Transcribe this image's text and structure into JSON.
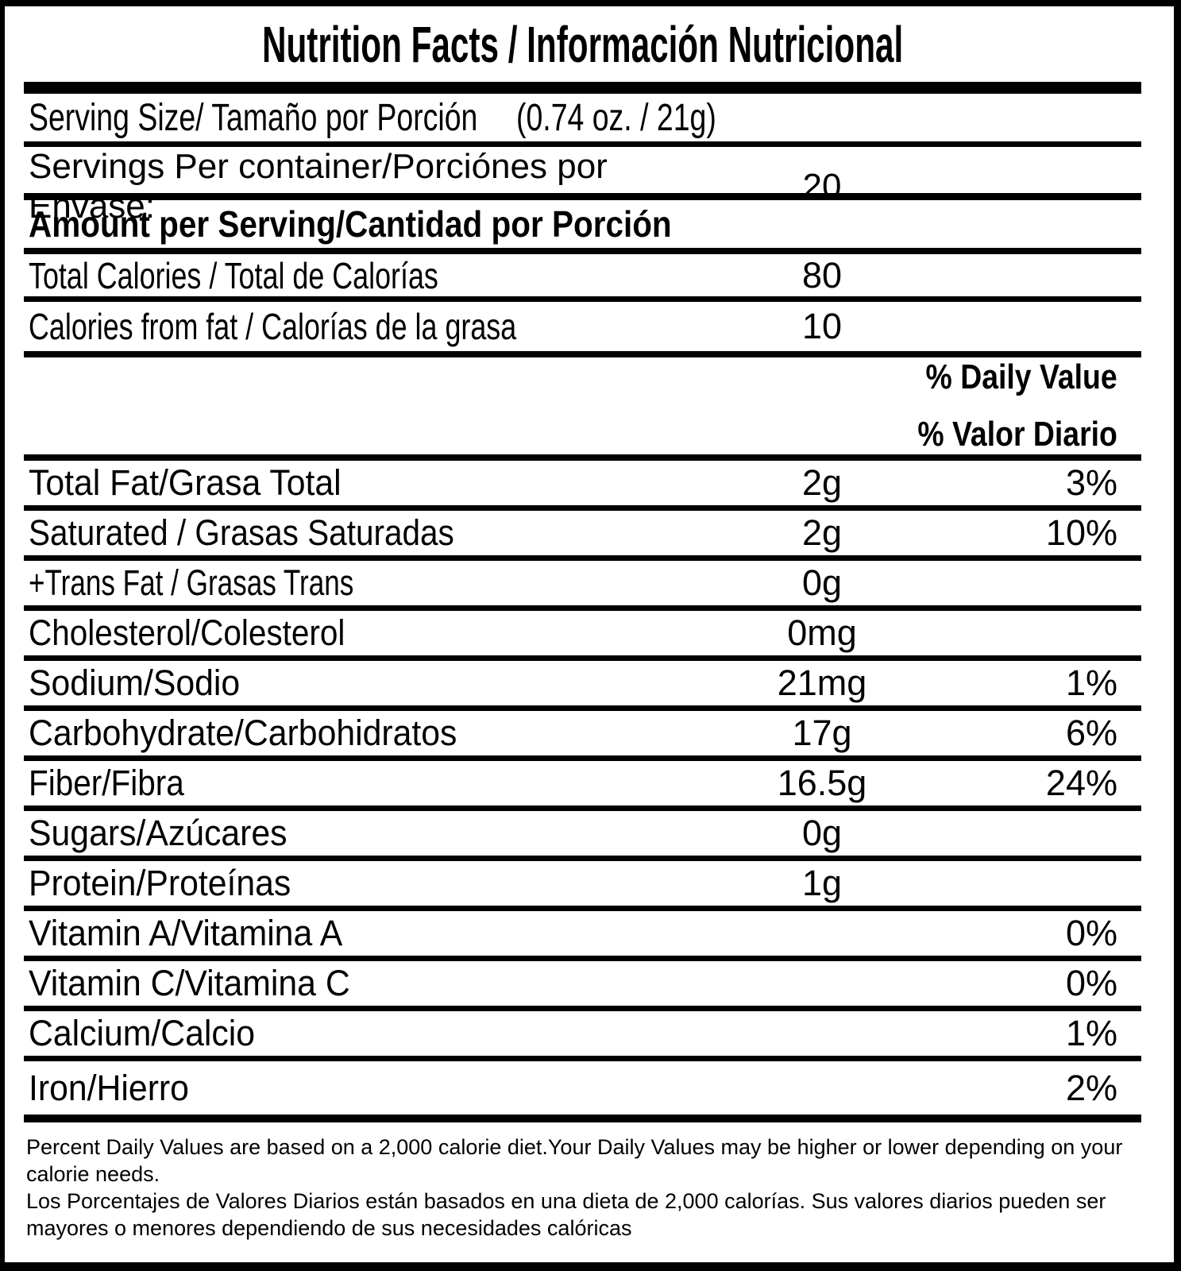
{
  "title": "Nutrition Facts / Información Nutricional",
  "serving": {
    "size_label": "Serving Size/ Tamaño por Porción",
    "size_value": "(0.74 oz. / 21g)",
    "per_container_label": "Servings Per container/Porciónes por Envase:",
    "per_container_value": "20"
  },
  "amount_per_serving_heading": "Amount per Serving/Cantidad por Porción",
  "calories": [
    {
      "label": "Total Calories / Total de Calorías",
      "value": "80"
    },
    {
      "label": "Calories from fat / Calorías de la grasa",
      "value": "10"
    }
  ],
  "daily_value_header": {
    "line1": "% Daily Value",
    "line2": "% Valor Diario"
  },
  "nutrients": [
    {
      "label": "Total Fat/Grasa Total",
      "amount": "2g",
      "percent": "3%"
    },
    {
      "label": "Saturated / Grasas Saturadas",
      "amount": "2g",
      "percent": "10%"
    },
    {
      "label": "+Trans Fat / Grasas Trans",
      "amount": "0g",
      "percent": ""
    },
    {
      "label": "Cholesterol/Colesterol",
      "amount": "0mg",
      "percent": ""
    },
    {
      "label": "Sodium/Sodio",
      "amount": "21mg",
      "percent": "1%"
    },
    {
      "label": "Carbohydrate/Carbohidratos",
      "amount": "17g",
      "percent": "6%"
    },
    {
      "label": "Fiber/Fibra",
      "amount": "16.5g",
      "percent": "24%"
    },
    {
      "label": "Sugars/Azúcares",
      "amount": "0g",
      "percent": ""
    },
    {
      "label": "Protein/Proteínas",
      "amount": "1g",
      "percent": ""
    },
    {
      "label": "Vitamin A/Vitamina A",
      "amount": "",
      "percent": "0%"
    },
    {
      "label": "Vitamin C/Vitamina C",
      "amount": "",
      "percent": "0%"
    },
    {
      "label": "Calcium/Calcio",
      "amount": "",
      "percent": "1%"
    },
    {
      "label": "Iron/Hierro",
      "amount": "",
      "percent": "2%"
    }
  ],
  "footnotes": {
    "english": "Percent Daily Values are based on a 2,000 calorie diet.Your Daily Values may be higher or lower depending on your calorie needs.",
    "spanish": "Los Porcentajes de Valores Diarios están basados en una dieta de 2,000 calorías. Sus valores diarios pueden ser mayores o menores dependiendo de sus necesidades calóricas"
  },
  "colors": {
    "text": "#000000",
    "background": "#ffffff"
  }
}
